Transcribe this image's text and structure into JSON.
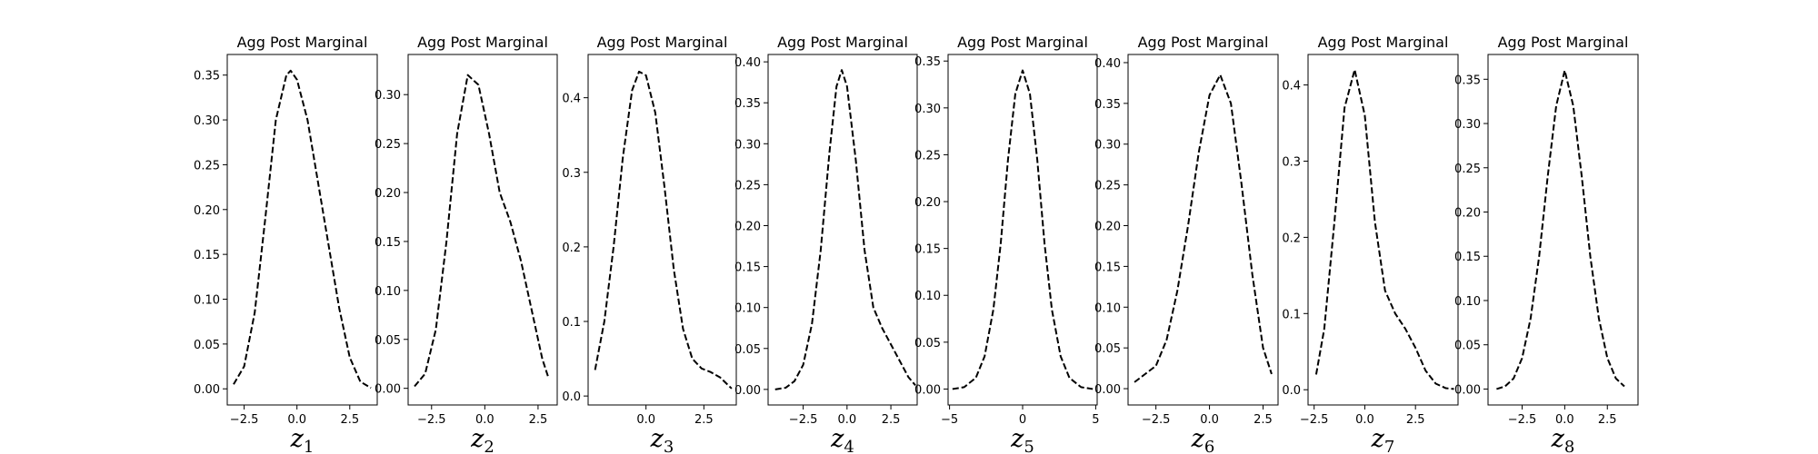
{
  "chart_data": [
    {
      "type": "line",
      "title": "Agg Post Marginal",
      "xlabel_var": "z",
      "xlabel_sub": "1",
      "line_style": "dashed",
      "line_color": "#000000",
      "xlim": [
        -3.3,
        3.8
      ],
      "ylim": [
        -0.018,
        0.373
      ],
      "xticks": [
        {
          "v": -2.5,
          "label": "−2.5"
        },
        {
          "v": 0,
          "label": "0.0"
        },
        {
          "v": 2.5,
          "label": "2.5"
        }
      ],
      "yticks": [
        {
          "v": 0,
          "label": "0.00"
        },
        {
          "v": 0.05,
          "label": "0.05"
        },
        {
          "v": 0.1,
          "label": "0.10"
        },
        {
          "v": 0.15,
          "label": "0.15"
        },
        {
          "v": 0.2,
          "label": "0.20"
        },
        {
          "v": 0.25,
          "label": "0.25"
        },
        {
          "v": 0.3,
          "label": "0.30"
        },
        {
          "v": 0.35,
          "label": "0.35"
        }
      ],
      "x": [
        -3.0,
        -2.5,
        -2.0,
        -1.5,
        -1.0,
        -0.5,
        -0.3,
        0.0,
        0.5,
        1.0,
        1.5,
        2.0,
        2.5,
        3.0,
        3.5
      ],
      "y": [
        0.005,
        0.025,
        0.085,
        0.19,
        0.3,
        0.35,
        0.355,
        0.345,
        0.3,
        0.23,
        0.16,
        0.09,
        0.035,
        0.008,
        0.001
      ]
    },
    {
      "type": "line",
      "title": "Agg Post Marginal",
      "xlabel_var": "z",
      "xlabel_sub": "2",
      "line_style": "dashed",
      "line_color": "#000000",
      "xlim": [
        -3.6,
        3.4
      ],
      "ylim": [
        -0.017,
        0.341
      ],
      "xticks": [
        {
          "v": -2.5,
          "label": "−2.5"
        },
        {
          "v": 0,
          "label": "0.0"
        },
        {
          "v": 2.5,
          "label": "2.5"
        }
      ],
      "yticks": [
        {
          "v": 0,
          "label": "0.00"
        },
        {
          "v": 0.05,
          "label": "0.05"
        },
        {
          "v": 0.1,
          "label": "0.10"
        },
        {
          "v": 0.15,
          "label": "0.15"
        },
        {
          "v": 0.2,
          "label": "0.20"
        },
        {
          "v": 0.25,
          "label": "0.25"
        },
        {
          "v": 0.3,
          "label": "0.30"
        }
      ],
      "x": [
        -3.3,
        -2.8,
        -2.3,
        -1.8,
        -1.3,
        -0.8,
        -0.3,
        0.2,
        0.7,
        1.2,
        1.7,
        2.2,
        2.7,
        3.0
      ],
      "y": [
        0.002,
        0.015,
        0.06,
        0.15,
        0.26,
        0.32,
        0.31,
        0.26,
        0.2,
        0.17,
        0.13,
        0.08,
        0.03,
        0.01
      ]
    },
    {
      "type": "line",
      "title": "Agg Post Marginal",
      "xlabel_var": "z",
      "xlabel_sub": "3",
      "line_style": "dashed",
      "line_color": "#000000",
      "xlim": [
        -2.5,
        3.9
      ],
      "ylim": [
        -0.012,
        0.458
      ],
      "xticks": [
        {
          "v": 0,
          "label": "0.0"
        },
        {
          "v": 2.5,
          "label": "2.5"
        }
      ],
      "yticks": [
        {
          "v": 0,
          "label": "0.0"
        },
        {
          "v": 0.1,
          "label": "0.1"
        },
        {
          "v": 0.2,
          "label": "0.2"
        },
        {
          "v": 0.3,
          "label": "0.3"
        },
        {
          "v": 0.4,
          "label": "0.4"
        }
      ],
      "x": [
        -2.2,
        -1.8,
        -1.4,
        -1.0,
        -0.6,
        -0.3,
        0.0,
        0.4,
        0.8,
        1.2,
        1.6,
        2.0,
        2.4,
        2.8,
        3.2,
        3.7
      ],
      "y": [
        0.035,
        0.1,
        0.2,
        0.32,
        0.41,
        0.435,
        0.43,
        0.38,
        0.28,
        0.17,
        0.09,
        0.05,
        0.037,
        0.032,
        0.025,
        0.01
      ]
    },
    {
      "type": "line",
      "title": "Agg Post Marginal",
      "xlabel_var": "z",
      "xlabel_sub": "4",
      "line_style": "dashed",
      "line_color": "#000000",
      "xlim": [
        -4.5,
        4.0
      ],
      "ylim": [
        -0.019,
        0.409
      ],
      "xticks": [
        {
          "v": -2.5,
          "label": "−2.5"
        },
        {
          "v": 0,
          "label": "0.0"
        },
        {
          "v": 2.5,
          "label": "2.5"
        }
      ],
      "yticks": [
        {
          "v": 0,
          "label": "0.00"
        },
        {
          "v": 0.05,
          "label": "0.05"
        },
        {
          "v": 0.1,
          "label": "0.10"
        },
        {
          "v": 0.15,
          "label": "0.15"
        },
        {
          "v": 0.2,
          "label": "0.20"
        },
        {
          "v": 0.25,
          "label": "0.25"
        },
        {
          "v": 0.3,
          "label": "0.30"
        },
        {
          "v": 0.35,
          "label": "0.35"
        },
        {
          "v": 0.4,
          "label": "0.40"
        }
      ],
      "x": [
        -4.1,
        -3.5,
        -3.0,
        -2.5,
        -2.0,
        -1.5,
        -1.0,
        -0.6,
        -0.3,
        0.0,
        0.5,
        1.0,
        1.5,
        2.0,
        2.5,
        3.0,
        3.5,
        3.9
      ],
      "y": [
        0.0,
        0.002,
        0.01,
        0.03,
        0.08,
        0.17,
        0.29,
        0.37,
        0.39,
        0.37,
        0.28,
        0.17,
        0.1,
        0.075,
        0.055,
        0.035,
        0.015,
        0.005
      ]
    },
    {
      "type": "line",
      "title": "Agg Post Marginal",
      "xlabel_var": "z",
      "xlabel_sub": "5",
      "line_style": "dashed",
      "line_color": "#000000",
      "xlim": [
        -5.1,
        5.1
      ],
      "ylim": [
        -0.017,
        0.357
      ],
      "xticks": [
        {
          "v": -5,
          "label": "−5"
        },
        {
          "v": 0,
          "label": "0"
        },
        {
          "v": 5,
          "label": "5"
        }
      ],
      "yticks": [
        {
          "v": 0,
          "label": "0.00"
        },
        {
          "v": 0.05,
          "label": "0.05"
        },
        {
          "v": 0.1,
          "label": "0.10"
        },
        {
          "v": 0.15,
          "label": "0.15"
        },
        {
          "v": 0.2,
          "label": "0.20"
        },
        {
          "v": 0.25,
          "label": "0.25"
        },
        {
          "v": 0.3,
          "label": "0.30"
        },
        {
          "v": 0.35,
          "label": "0.35"
        }
      ],
      "x": [
        -4.8,
        -4.0,
        -3.2,
        -2.6,
        -2.0,
        -1.5,
        -1.0,
        -0.5,
        0.0,
        0.5,
        1.0,
        1.5,
        2.0,
        2.6,
        3.2,
        4.0,
        4.8
      ],
      "y": [
        0.0,
        0.002,
        0.012,
        0.035,
        0.085,
        0.155,
        0.245,
        0.315,
        0.34,
        0.315,
        0.245,
        0.155,
        0.085,
        0.035,
        0.012,
        0.002,
        0.0
      ]
    },
    {
      "type": "line",
      "title": "Agg Post Marginal",
      "xlabel_var": "z",
      "xlabel_sub": "6",
      "line_style": "dashed",
      "line_color": "#000000",
      "xlim": [
        -3.8,
        3.2
      ],
      "ylim": [
        -0.02,
        0.41
      ],
      "xticks": [
        {
          "v": -2.5,
          "label": "−2.5"
        },
        {
          "v": 0,
          "label": "0.0"
        },
        {
          "v": 2.5,
          "label": "2.5"
        }
      ],
      "yticks": [
        {
          "v": 0,
          "label": "0.00"
        },
        {
          "v": 0.05,
          "label": "0.05"
        },
        {
          "v": 0.1,
          "label": "0.10"
        },
        {
          "v": 0.15,
          "label": "0.15"
        },
        {
          "v": 0.2,
          "label": "0.20"
        },
        {
          "v": 0.25,
          "label": "0.25"
        },
        {
          "v": 0.3,
          "label": "0.30"
        },
        {
          "v": 0.35,
          "label": "0.35"
        },
        {
          "v": 0.4,
          "label": "0.40"
        }
      ],
      "x": [
        -3.5,
        -3.0,
        -2.5,
        -2.0,
        -1.5,
        -1.0,
        -0.5,
        0.0,
        0.5,
        1.0,
        1.5,
        2.0,
        2.5,
        2.9
      ],
      "y": [
        0.008,
        0.018,
        0.028,
        0.06,
        0.12,
        0.2,
        0.29,
        0.36,
        0.385,
        0.35,
        0.25,
        0.14,
        0.05,
        0.018
      ]
    },
    {
      "type": "line",
      "title": "Agg Post Marginal",
      "xlabel_var": "z",
      "xlabel_sub": "7",
      "line_style": "dashed",
      "line_color": "#000000",
      "xlim": [
        -2.8,
        4.6
      ],
      "ylim": [
        -0.02,
        0.44
      ],
      "xticks": [
        {
          "v": -2.5,
          "label": "−2.5"
        },
        {
          "v": 0,
          "label": "0.0"
        },
        {
          "v": 2.5,
          "label": "2.5"
        }
      ],
      "yticks": [
        {
          "v": 0,
          "label": "0.0"
        },
        {
          "v": 0.1,
          "label": "0.1"
        },
        {
          "v": 0.2,
          "label": "0.2"
        },
        {
          "v": 0.3,
          "label": "0.3"
        },
        {
          "v": 0.4,
          "label": "0.4"
        }
      ],
      "x": [
        -2.4,
        -2.0,
        -1.5,
        -1.0,
        -0.5,
        0.0,
        0.5,
        1.0,
        1.5,
        2.0,
        2.5,
        3.0,
        3.5,
        4.0,
        4.4
      ],
      "y": [
        0.02,
        0.08,
        0.22,
        0.37,
        0.42,
        0.36,
        0.22,
        0.13,
        0.1,
        0.08,
        0.055,
        0.025,
        0.008,
        0.002,
        0.001
      ]
    },
    {
      "type": "line",
      "title": "Agg Post Marginal",
      "xlabel_var": "z",
      "xlabel_sub": "8",
      "line_style": "dashed",
      "line_color": "#000000",
      "xlim": [
        -4.5,
        4.3
      ],
      "ylim": [
        -0.018,
        0.378
      ],
      "xticks": [
        {
          "v": -2.5,
          "label": "−2.5"
        },
        {
          "v": 0,
          "label": "0.0"
        },
        {
          "v": 2.5,
          "label": "2.5"
        }
      ],
      "yticks": [
        {
          "v": 0,
          "label": "0.00"
        },
        {
          "v": 0.05,
          "label": "0.05"
        },
        {
          "v": 0.1,
          "label": "0.10"
        },
        {
          "v": 0.15,
          "label": "0.15"
        },
        {
          "v": 0.2,
          "label": "0.20"
        },
        {
          "v": 0.25,
          "label": "0.25"
        },
        {
          "v": 0.3,
          "label": "0.30"
        },
        {
          "v": 0.35,
          "label": "0.35"
        }
      ],
      "x": [
        -4.0,
        -3.5,
        -3.0,
        -2.5,
        -2.0,
        -1.5,
        -1.0,
        -0.5,
        0.0,
        0.5,
        1.0,
        1.5,
        2.0,
        2.5,
        3.0,
        3.5
      ],
      "y": [
        0.0,
        0.003,
        0.012,
        0.035,
        0.08,
        0.15,
        0.24,
        0.32,
        0.36,
        0.32,
        0.24,
        0.15,
        0.08,
        0.035,
        0.012,
        0.003
      ]
    }
  ]
}
